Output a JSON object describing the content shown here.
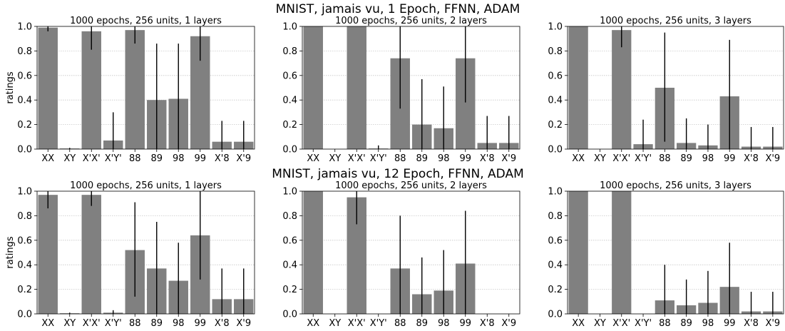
{
  "figure": {
    "suptitles": [
      "MNIST, jamais vu, 1 Epoch, FFNN, ADAM",
      "MNIST, jamais vu, 12 Epoch, FFNN, ADAM"
    ],
    "bar_color": "#808080",
    "errorbar_color": "#000000",
    "grid_color": "#c8c8c8"
  },
  "chart_data": [
    {
      "type": "bar",
      "title": "1000 epochs, 256 units, 1 layers",
      "ylabel": "ratings",
      "ylim": [
        0,
        1.0
      ],
      "yticks": [
        "0.0",
        "0.2",
        "0.4",
        "0.6",
        "0.8",
        "1.0"
      ],
      "categories": [
        "XX",
        "XY",
        "X'X'",
        "X'Y'",
        "88",
        "89",
        "98",
        "99",
        "X'8",
        "X'9"
      ],
      "values": [
        0.99,
        0.005,
        0.96,
        0.07,
        0.97,
        0.4,
        0.41,
        0.92,
        0.06,
        0.06
      ],
      "error_low": [
        0.96,
        0.0,
        0.81,
        0.0,
        0.86,
        0.0,
        0.0,
        0.72,
        0.0,
        0.0
      ],
      "error_high": [
        1.0,
        0.01,
        1.0,
        0.3,
        1.0,
        0.86,
        0.86,
        1.0,
        0.23,
        0.23
      ],
      "grid": "horizontal dotted"
    },
    {
      "type": "bar",
      "title": "1000 epochs, 256 units, 2 layers",
      "ylabel": "",
      "ylim": [
        0,
        1.0
      ],
      "yticks": [
        "0.0",
        "0.2",
        "0.4",
        "0.6",
        "0.8",
        "1.0"
      ],
      "categories": [
        "XX",
        "XY",
        "X'X'",
        "X'Y'",
        "88",
        "89",
        "98",
        "99",
        "X'8",
        "X'9"
      ],
      "values": [
        1.0,
        0.0,
        1.0,
        0.005,
        0.74,
        0.2,
        0.17,
        0.74,
        0.05,
        0.05
      ],
      "error_low": [
        1.0,
        0.0,
        1.0,
        0.0,
        0.33,
        0.0,
        0.0,
        0.38,
        0.0,
        0.0
      ],
      "error_high": [
        1.0,
        0.0,
        1.0,
        0.03,
        1.0,
        0.57,
        0.51,
        1.0,
        0.27,
        0.27
      ],
      "grid": "horizontal dotted"
    },
    {
      "type": "bar",
      "title": "1000 epochs, 256 units, 3 layers",
      "ylabel": "",
      "ylim": [
        0,
        1.0
      ],
      "yticks": [
        "0.0",
        "0.2",
        "0.4",
        "0.6",
        "0.8",
        "1.0"
      ],
      "categories": [
        "XX",
        "XY",
        "X'X'",
        "X'Y'",
        "88",
        "89",
        "98",
        "99",
        "X'8",
        "X'9"
      ],
      "values": [
        1.0,
        0.0,
        0.97,
        0.04,
        0.5,
        0.05,
        0.03,
        0.43,
        0.02,
        0.02
      ],
      "error_low": [
        1.0,
        0.0,
        0.83,
        0.0,
        0.06,
        0.0,
        0.0,
        0.0,
        0.0,
        0.0
      ],
      "error_high": [
        1.0,
        0.0,
        1.0,
        0.24,
        0.95,
        0.25,
        0.2,
        0.89,
        0.18,
        0.18
      ],
      "grid": "horizontal dotted"
    },
    {
      "type": "bar",
      "title": "1000 epochs, 256 units, 1 layers",
      "ylabel": "ratings",
      "ylim": [
        0,
        1.0
      ],
      "yticks": [
        "0.0",
        "0.2",
        "0.4",
        "0.6",
        "0.8",
        "1.0"
      ],
      "categories": [
        "XX",
        "XY",
        "X'X'",
        "X'Y'",
        "88",
        "89",
        "98",
        "99",
        "X'8",
        "X'9"
      ],
      "values": [
        0.97,
        0.005,
        0.97,
        0.01,
        0.52,
        0.37,
        0.27,
        0.64,
        0.12,
        0.12
      ],
      "error_low": [
        0.86,
        0.0,
        0.88,
        0.0,
        0.14,
        0.0,
        0.0,
        0.28,
        0.0,
        0.0
      ],
      "error_high": [
        1.0,
        0.01,
        1.0,
        0.03,
        0.91,
        0.75,
        0.58,
        1.0,
        0.37,
        0.37
      ],
      "grid": "horizontal dotted"
    },
    {
      "type": "bar",
      "title": "1000 epochs, 256 units, 2 layers",
      "ylabel": "",
      "ylim": [
        0,
        1.0
      ],
      "yticks": [
        "0.0",
        "0.2",
        "0.4",
        "0.6",
        "0.8",
        "1.0"
      ],
      "categories": [
        "XX",
        "XY",
        "X'X'",
        "X'Y'",
        "88",
        "89",
        "98",
        "99",
        "X'8",
        "X'9"
      ],
      "values": [
        1.0,
        0.0,
        0.95,
        0.0,
        0.37,
        0.16,
        0.19,
        0.41,
        0.0,
        0.0
      ],
      "error_low": [
        1.0,
        0.0,
        0.73,
        0.0,
        0.0,
        0.0,
        0.0,
        0.0,
        0.0,
        0.0
      ],
      "error_high": [
        1.0,
        0.0,
        1.0,
        0.0,
        0.8,
        0.46,
        0.52,
        0.84,
        0.0,
        0.0
      ],
      "grid": "horizontal dotted"
    },
    {
      "type": "bar",
      "title": "1000 epochs, 256 units, 3 layers",
      "ylabel": "",
      "ylim": [
        0,
        1.0
      ],
      "yticks": [
        "0.0",
        "0.2",
        "0.4",
        "0.6",
        "0.8",
        "1.0"
      ],
      "categories": [
        "XX",
        "XY",
        "X'X'",
        "X'Y'",
        "88",
        "89",
        "98",
        "99",
        "X'8",
        "X'9"
      ],
      "values": [
        1.0,
        0.0,
        1.0,
        0.0,
        0.11,
        0.07,
        0.09,
        0.22,
        0.02,
        0.02
      ],
      "error_low": [
        1.0,
        0.0,
        1.0,
        0.0,
        0.0,
        0.0,
        0.0,
        0.0,
        0.0,
        0.0
      ],
      "error_high": [
        1.0,
        0.0,
        1.0,
        0.0,
        0.4,
        0.28,
        0.35,
        0.58,
        0.18,
        0.18
      ],
      "grid": "horizontal dotted"
    }
  ]
}
